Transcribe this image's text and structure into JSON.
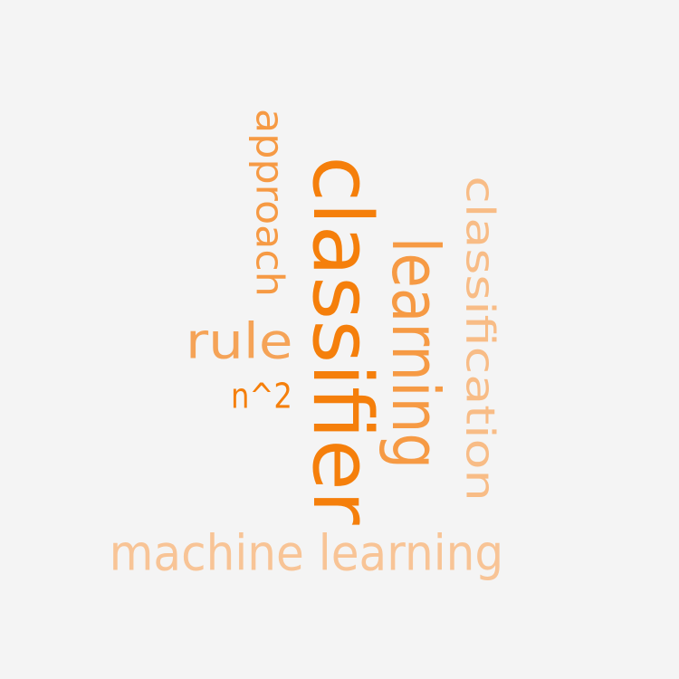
{
  "word_cloud": {
    "words": [
      {
        "id": "classifier",
        "text": "classifier",
        "color": "#f57f0b",
        "weight": 1.0,
        "rotated": true
      },
      {
        "id": "classification",
        "text": "classification",
        "color": "#f8bc86",
        "weight": 0.55,
        "rotated": true
      },
      {
        "id": "learning",
        "text": "learning",
        "color": "#f69a44",
        "weight": 0.6,
        "rotated": true
      },
      {
        "id": "approach",
        "text": "approach",
        "color": "#f69a44",
        "weight": 0.4,
        "rotated": true
      },
      {
        "id": "rule",
        "text": "rule",
        "color": "#f5a357",
        "weight": 0.5,
        "rotated": false
      },
      {
        "id": "n2",
        "text": "n^2",
        "color": "#f57f0b",
        "weight": 0.3,
        "rotated": false
      },
      {
        "id": "machine-learning",
        "text": "machine learning",
        "color": "#f8c496",
        "weight": 0.45,
        "rotated": false
      }
    ]
  }
}
